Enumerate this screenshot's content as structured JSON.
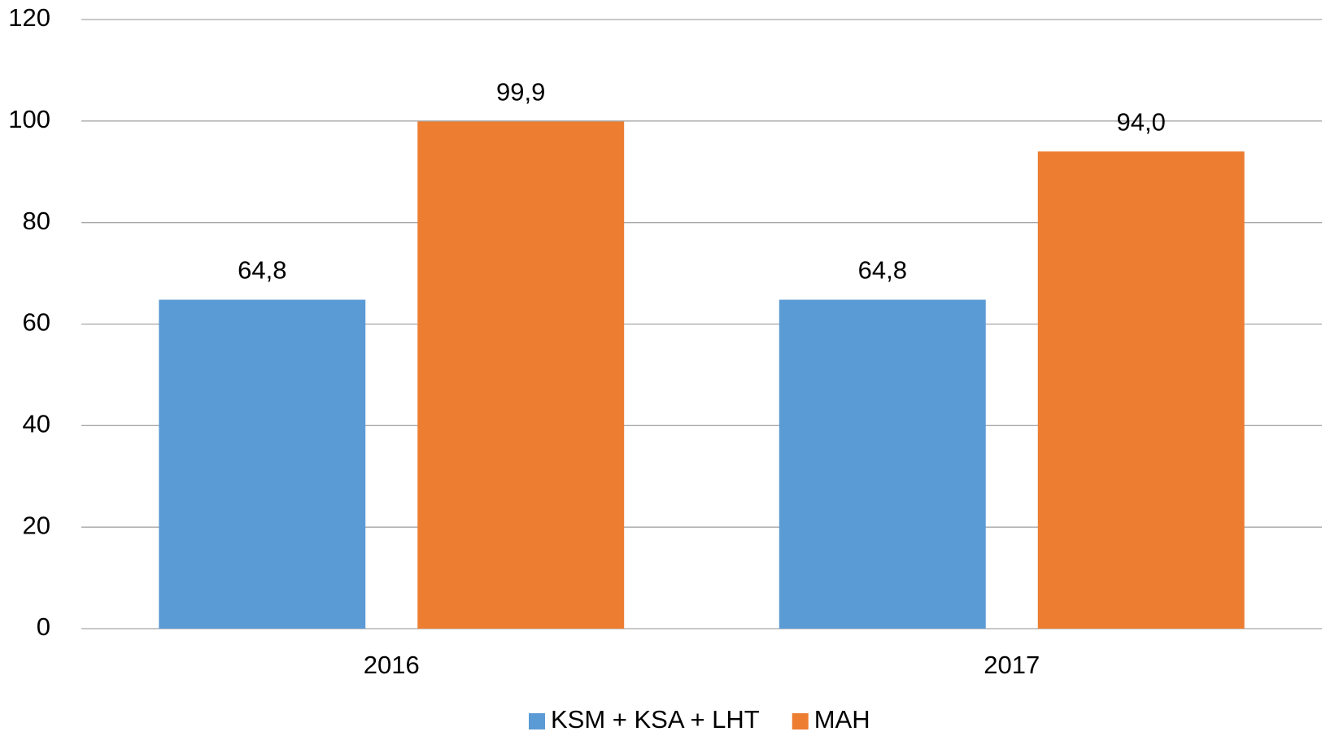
{
  "chart_data": {
    "type": "bar",
    "categories": [
      "2016",
      "2017"
    ],
    "series": [
      {
        "name": "KSM + KSA + LHT",
        "color": "#5b9bd5",
        "values": [
          64.8,
          64.8
        ],
        "value_labels": [
          "64,8",
          "64,8"
        ]
      },
      {
        "name": "MAH",
        "color": "#ed7d31",
        "values": [
          99.9,
          94.0
        ],
        "value_labels": [
          "99,9",
          "94,0"
        ]
      }
    ],
    "ylim": [
      0,
      120
    ],
    "yticks": [
      0,
      20,
      40,
      60,
      80,
      100,
      120
    ],
    "grid": true,
    "legend": "bottom"
  }
}
